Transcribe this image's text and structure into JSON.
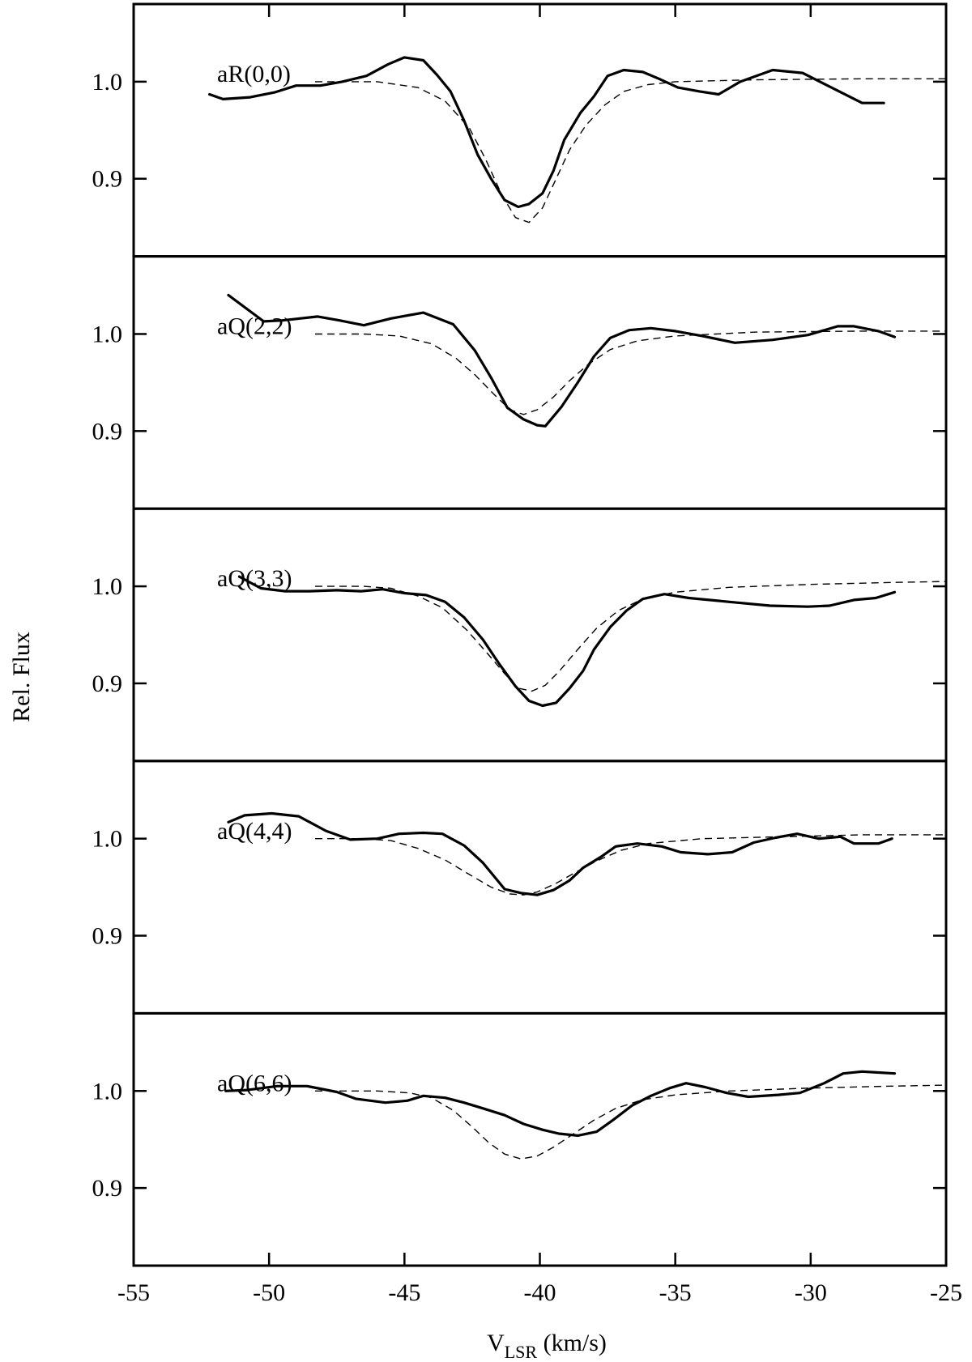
{
  "chart_data": {
    "type": "line",
    "xlabel": "V",
    "xlabel_sub": "LSR",
    "xlabel_unit": " (km/s)",
    "ylabel": "Rel. Flux",
    "xlim": [
      -55,
      -25
    ],
    "ylim": [
      0.82,
      1.08
    ],
    "x_ticks": [
      -55,
      -50,
      -45,
      -40,
      -35,
      -30,
      -25
    ],
    "x_tick_labels": [
      "-55",
      "-50",
      "-45",
      "-40",
      "-35",
      "-30",
      "-25"
    ],
    "y_ticks": [
      1.0,
      0.9
    ],
    "y_tick_labels": [
      "1.0",
      "0.9"
    ],
    "line_styles": [
      "solid",
      "dashed"
    ],
    "panels": [
      {
        "label": "aR(0,0)",
        "observed": [
          [
            -52.2,
            0.987
          ],
          [
            -51.7,
            0.982
          ],
          [
            -50.7,
            0.984
          ],
          [
            -49.8,
            0.989
          ],
          [
            -49.0,
            0.996
          ],
          [
            -48.1,
            0.996
          ],
          [
            -47.3,
            1.0
          ],
          [
            -46.4,
            1.006
          ],
          [
            -45.6,
            1.018
          ],
          [
            -45.0,
            1.025
          ],
          [
            -44.3,
            1.022
          ],
          [
            -43.8,
            1.007
          ],
          [
            -43.3,
            0.99
          ],
          [
            -42.8,
            0.96
          ],
          [
            -42.3,
            0.925
          ],
          [
            -41.8,
            0.9
          ],
          [
            -41.3,
            0.878
          ],
          [
            -40.8,
            0.871
          ],
          [
            -40.4,
            0.874
          ],
          [
            -39.9,
            0.885
          ],
          [
            -39.5,
            0.908
          ],
          [
            -39.1,
            0.94
          ],
          [
            -38.5,
            0.968
          ],
          [
            -38.0,
            0.985
          ],
          [
            -37.5,
            1.006
          ],
          [
            -36.9,
            1.012
          ],
          [
            -36.2,
            1.01
          ],
          [
            -35.6,
            1.003
          ],
          [
            -34.9,
            0.994
          ],
          [
            -34.1,
            0.99
          ],
          [
            -33.4,
            0.987
          ],
          [
            -32.6,
            1.0
          ],
          [
            -31.4,
            1.012
          ],
          [
            -30.3,
            1.009
          ],
          [
            -29.3,
            0.995
          ],
          [
            -28.1,
            0.978
          ],
          [
            -27.3,
            0.978
          ]
        ],
        "model": [
          [
            -48.3,
            1.0
          ],
          [
            -46.0,
            1.0
          ],
          [
            -44.5,
            0.994
          ],
          [
            -43.5,
            0.98
          ],
          [
            -42.6,
            0.952
          ],
          [
            -42.0,
            0.92
          ],
          [
            -41.4,
            0.883
          ],
          [
            -40.9,
            0.86
          ],
          [
            -40.4,
            0.855
          ],
          [
            -39.9,
            0.87
          ],
          [
            -39.4,
            0.9
          ],
          [
            -38.9,
            0.93
          ],
          [
            -38.3,
            0.955
          ],
          [
            -37.6,
            0.976
          ],
          [
            -36.9,
            0.99
          ],
          [
            -36.0,
            0.997
          ],
          [
            -35.0,
            1.0
          ],
          [
            -32.0,
            1.002
          ],
          [
            -28.0,
            1.003
          ],
          [
            -25.0,
            1.003
          ]
        ]
      },
      {
        "label": "aQ(2,2)",
        "observed": [
          [
            -51.5,
            1.04
          ],
          [
            -50.2,
            1.013
          ],
          [
            -49.5,
            1.014
          ],
          [
            -48.2,
            1.018
          ],
          [
            -47.4,
            1.014
          ],
          [
            -46.5,
            1.009
          ],
          [
            -45.5,
            1.016
          ],
          [
            -44.3,
            1.022
          ],
          [
            -43.2,
            1.01
          ],
          [
            -42.4,
            0.983
          ],
          [
            -41.8,
            0.955
          ],
          [
            -41.2,
            0.924
          ],
          [
            -40.6,
            0.912
          ],
          [
            -40.1,
            0.906
          ],
          [
            -39.8,
            0.905
          ],
          [
            -39.2,
            0.925
          ],
          [
            -38.6,
            0.95
          ],
          [
            -38.0,
            0.977
          ],
          [
            -37.4,
            0.996
          ],
          [
            -36.7,
            1.004
          ],
          [
            -35.9,
            1.006
          ],
          [
            -35.0,
            1.003
          ],
          [
            -34.0,
            0.998
          ],
          [
            -32.8,
            0.991
          ],
          [
            -31.4,
            0.994
          ],
          [
            -30.1,
            0.999
          ],
          [
            -29.0,
            1.008
          ],
          [
            -28.4,
            1.008
          ],
          [
            -27.5,
            1.003
          ],
          [
            -26.9,
            0.997
          ]
        ],
        "model": [
          [
            -48.3,
            1.0
          ],
          [
            -46.5,
            1.0
          ],
          [
            -45.2,
            0.998
          ],
          [
            -44.0,
            0.99
          ],
          [
            -43.1,
            0.975
          ],
          [
            -42.4,
            0.958
          ],
          [
            -41.7,
            0.938
          ],
          [
            -41.1,
            0.922
          ],
          [
            -40.6,
            0.917
          ],
          [
            -40.1,
            0.922
          ],
          [
            -39.5,
            0.935
          ],
          [
            -38.9,
            0.952
          ],
          [
            -38.2,
            0.969
          ],
          [
            -37.4,
            0.984
          ],
          [
            -36.4,
            0.993
          ],
          [
            -35.0,
            0.998
          ],
          [
            -32.0,
            1.002
          ],
          [
            -28.0,
            1.003
          ],
          [
            -25.0,
            1.003
          ]
        ]
      },
      {
        "label": "aQ(3,3)",
        "observed": [
          [
            -51.1,
            1.01
          ],
          [
            -50.3,
            0.998
          ],
          [
            -49.4,
            0.995
          ],
          [
            -48.5,
            0.995
          ],
          [
            -47.5,
            0.996
          ],
          [
            -46.6,
            0.995
          ],
          [
            -45.8,
            0.997
          ],
          [
            -45.0,
            0.993
          ],
          [
            -44.2,
            0.991
          ],
          [
            -43.5,
            0.984
          ],
          [
            -42.8,
            0.968
          ],
          [
            -42.1,
            0.945
          ],
          [
            -41.5,
            0.92
          ],
          [
            -40.9,
            0.897
          ],
          [
            -40.4,
            0.882
          ],
          [
            -39.9,
            0.877
          ],
          [
            -39.4,
            0.88
          ],
          [
            -38.9,
            0.895
          ],
          [
            -38.4,
            0.913
          ],
          [
            -38.0,
            0.935
          ],
          [
            -37.4,
            0.958
          ],
          [
            -36.8,
            0.975
          ],
          [
            -36.2,
            0.987
          ],
          [
            -35.4,
            0.992
          ],
          [
            -34.5,
            0.988
          ],
          [
            -33.0,
            0.984
          ],
          [
            -31.5,
            0.98
          ],
          [
            -30.1,
            0.979
          ],
          [
            -29.3,
            0.98
          ],
          [
            -28.4,
            0.986
          ],
          [
            -27.6,
            0.988
          ],
          [
            -26.9,
            0.994
          ]
        ],
        "model": [
          [
            -48.3,
            1.0
          ],
          [
            -46.5,
            1.0
          ],
          [
            -45.5,
            0.998
          ],
          [
            -44.5,
            0.99
          ],
          [
            -43.6,
            0.978
          ],
          [
            -42.7,
            0.955
          ],
          [
            -42.0,
            0.933
          ],
          [
            -41.3,
            0.91
          ],
          [
            -40.8,
            0.895
          ],
          [
            -40.3,
            0.892
          ],
          [
            -39.8,
            0.898
          ],
          [
            -39.3,
            0.912
          ],
          [
            -38.6,
            0.935
          ],
          [
            -37.9,
            0.957
          ],
          [
            -37.1,
            0.975
          ],
          [
            -36.2,
            0.987
          ],
          [
            -35.0,
            0.994
          ],
          [
            -33.0,
            0.999
          ],
          [
            -30.0,
            1.002
          ],
          [
            -27.0,
            1.004
          ],
          [
            -25.0,
            1.005
          ]
        ]
      },
      {
        "label": "aQ(4,4)",
        "observed": [
          [
            -51.5,
            1.017
          ],
          [
            -50.9,
            1.024
          ],
          [
            -49.9,
            1.026
          ],
          [
            -48.9,
            1.023
          ],
          [
            -47.9,
            1.008
          ],
          [
            -47.0,
            0.999
          ],
          [
            -46.0,
            1.0
          ],
          [
            -45.2,
            1.005
          ],
          [
            -44.3,
            1.006
          ],
          [
            -43.6,
            1.005
          ],
          [
            -42.8,
            0.993
          ],
          [
            -42.1,
            0.975
          ],
          [
            -41.3,
            0.948
          ],
          [
            -40.7,
            0.944
          ],
          [
            -40.1,
            0.942
          ],
          [
            -39.5,
            0.947
          ],
          [
            -38.9,
            0.957
          ],
          [
            -38.4,
            0.97
          ],
          [
            -37.7,
            0.982
          ],
          [
            -37.2,
            0.992
          ],
          [
            -36.4,
            0.995
          ],
          [
            -35.5,
            0.992
          ],
          [
            -34.8,
            0.986
          ],
          [
            -33.8,
            0.984
          ],
          [
            -32.9,
            0.986
          ],
          [
            -32.1,
            0.996
          ],
          [
            -31.3,
            1.001
          ],
          [
            -30.5,
            1.005
          ],
          [
            -29.7,
            1.0
          ],
          [
            -28.9,
            1.002
          ],
          [
            -28.4,
            0.995
          ],
          [
            -27.5,
            0.995
          ],
          [
            -27.0,
            1.0
          ]
        ],
        "model": [
          [
            -48.3,
            1.0
          ],
          [
            -46.5,
            1.0
          ],
          [
            -45.5,
            0.998
          ],
          [
            -44.5,
            0.99
          ],
          [
            -43.5,
            0.978
          ],
          [
            -42.6,
            0.963
          ],
          [
            -41.8,
            0.95
          ],
          [
            -41.1,
            0.943
          ],
          [
            -40.6,
            0.942
          ],
          [
            -40.1,
            0.945
          ],
          [
            -39.4,
            0.954
          ],
          [
            -38.7,
            0.965
          ],
          [
            -37.9,
            0.977
          ],
          [
            -37.0,
            0.988
          ],
          [
            -36.0,
            0.995
          ],
          [
            -34.0,
            1.0
          ],
          [
            -31.0,
            1.002
          ],
          [
            -28.0,
            1.004
          ],
          [
            -25.0,
            1.004
          ]
        ]
      },
      {
        "label": "aQ(6,6)",
        "observed": [
          [
            -51.6,
            1.0
          ],
          [
            -50.8,
            1.001
          ],
          [
            -49.7,
            1.005
          ],
          [
            -48.6,
            1.005
          ],
          [
            -47.5,
            0.999
          ],
          [
            -46.8,
            0.992
          ],
          [
            -45.7,
            0.988
          ],
          [
            -44.9,
            0.99
          ],
          [
            -44.3,
            0.995
          ],
          [
            -43.5,
            0.993
          ],
          [
            -42.8,
            0.988
          ],
          [
            -42.1,
            0.982
          ],
          [
            -41.3,
            0.975
          ],
          [
            -40.6,
            0.966
          ],
          [
            -39.9,
            0.96
          ],
          [
            -39.3,
            0.956
          ],
          [
            -38.6,
            0.954
          ],
          [
            -37.9,
            0.958
          ],
          [
            -37.3,
            0.97
          ],
          [
            -36.6,
            0.985
          ],
          [
            -35.9,
            0.995
          ],
          [
            -35.2,
            1.003
          ],
          [
            -34.6,
            1.008
          ],
          [
            -33.9,
            1.004
          ],
          [
            -33.1,
            0.998
          ],
          [
            -32.3,
            0.994
          ],
          [
            -31.2,
            0.996
          ],
          [
            -30.4,
            0.998
          ],
          [
            -29.5,
            1.008
          ],
          [
            -28.8,
            1.018
          ],
          [
            -28.1,
            1.02
          ],
          [
            -27.5,
            1.019
          ],
          [
            -26.9,
            1.018
          ]
        ],
        "model": [
          [
            -48.3,
            1.0
          ],
          [
            -46.0,
            1.0
          ],
          [
            -44.8,
            0.998
          ],
          [
            -44.0,
            0.993
          ],
          [
            -43.2,
            0.98
          ],
          [
            -42.5,
            0.963
          ],
          [
            -41.9,
            0.947
          ],
          [
            -41.3,
            0.935
          ],
          [
            -40.7,
            0.93
          ],
          [
            -40.1,
            0.933
          ],
          [
            -39.5,
            0.942
          ],
          [
            -38.8,
            0.955
          ],
          [
            -38.0,
            0.97
          ],
          [
            -37.2,
            0.982
          ],
          [
            -36.2,
            0.991
          ],
          [
            -35.0,
            0.996
          ],
          [
            -33.0,
            1.0
          ],
          [
            -30.0,
            1.003
          ],
          [
            -27.0,
            1.005
          ],
          [
            -25.0,
            1.006
          ]
        ]
      }
    ]
  }
}
